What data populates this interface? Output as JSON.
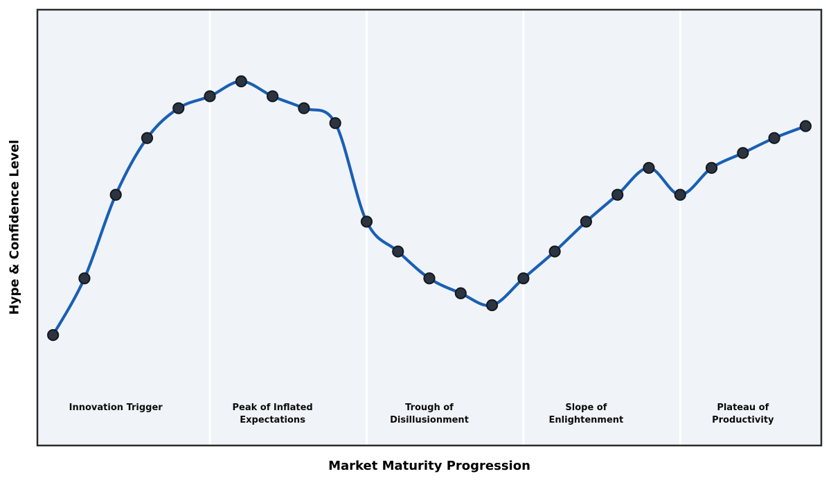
{
  "chart_data": {
    "type": "line",
    "title": "",
    "xlabel": "Market Maturity Progression",
    "ylabel": "Hype & Confidence Level",
    "x": [
      0,
      1,
      2,
      3,
      4,
      5,
      6,
      7,
      8,
      9,
      10,
      11,
      12,
      13,
      14,
      15,
      16,
      17,
      18,
      19,
      20,
      21,
      22,
      23,
      24
    ],
    "values": [
      10,
      29,
      57,
      76,
      86,
      90,
      95,
      90,
      86,
      81,
      48,
      38,
      29,
      24,
      20,
      29,
      38,
      48,
      57,
      66,
      57,
      66,
      71,
      76,
      80
    ],
    "xlim": [
      -0.5,
      24.5
    ],
    "ylim": [
      -27,
      119
    ],
    "grid": false,
    "legend": null,
    "smoothing": "spline",
    "phase_boundaries": [
      5,
      10,
      15,
      20
    ],
    "phases": [
      {
        "label": "Innovation Trigger",
        "center_x": 2
      },
      {
        "label": "Peak of Inflated\nExpectations",
        "center_x": 7
      },
      {
        "label": "Trough of\nDisillusionment",
        "center_x": 12
      },
      {
        "label": "Slope of\nEnlightenment",
        "center_x": 17
      },
      {
        "label": "Plateau of\nProductivity",
        "center_x": 22
      }
    ],
    "colors": {
      "line": "#1a5fb4",
      "marker_fill": "#2b3440",
      "marker_edge": "#14181f",
      "plot_background": "#f0f4f8",
      "divider": "#ffffff",
      "border": "#2a2a2a",
      "figure_background": "#ffffff"
    }
  }
}
